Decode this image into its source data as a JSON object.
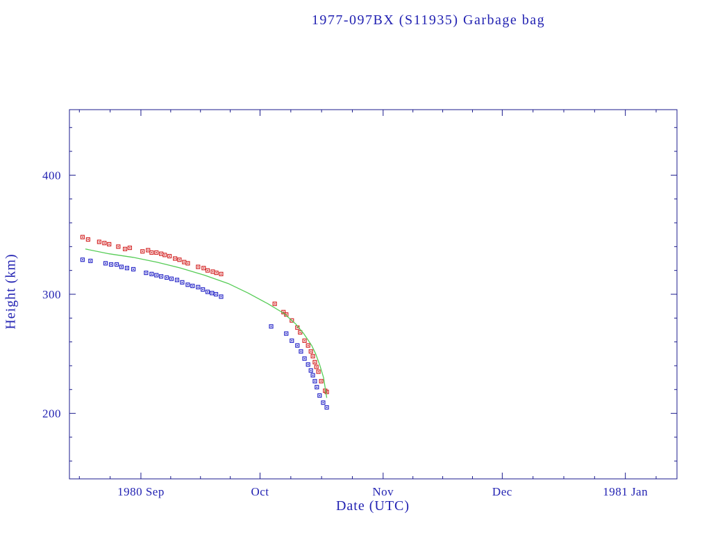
{
  "chart_data": {
    "type": "scatter",
    "title": "1977-097BX (S11935) Garbage bag",
    "xlabel": "Date (UTC)",
    "ylabel": "Height (km)",
    "grid": false,
    "legend": null,
    "colors": {
      "frame": "#1a1a8c",
      "text": "#2222b2",
      "red_points": "#d42a2a",
      "blue_points": "#2a2ac8",
      "green_line": "#55cc55"
    },
    "x_axis": {
      "unit": "days since 1980-08-14",
      "lim": [
        0,
        153
      ],
      "ticks": [
        {
          "d": 18,
          "label": "1980 Sep"
        },
        {
          "d": 48,
          "label": "Oct"
        },
        {
          "d": 79,
          "label": "Nov"
        },
        {
          "d": 109,
          "label": "Dec"
        },
        {
          "d": 140,
          "label": "1981 Jan"
        }
      ],
      "month_boundaries": [
        -13,
        18,
        48,
        79,
        109,
        140,
        171
      ]
    },
    "y_axis": {
      "lim": [
        145,
        455
      ],
      "ticks": [
        {
          "v": 200,
          "label": "200"
        },
        {
          "v": 300,
          "label": "300"
        },
        {
          "v": 400,
          "label": "400"
        }
      ],
      "minor_step": 20
    },
    "series": [
      {
        "name": "red-points",
        "marker": "square",
        "color": "#d42a2a",
        "points": [
          [
            3.3,
            348
          ],
          [
            4.7,
            346
          ],
          [
            7.5,
            344
          ],
          [
            8.8,
            343
          ],
          [
            10.0,
            342
          ],
          [
            12.3,
            340
          ],
          [
            14.0,
            338
          ],
          [
            15.2,
            339
          ],
          [
            18.4,
            336
          ],
          [
            19.8,
            337
          ],
          [
            20.7,
            335
          ],
          [
            21.9,
            335
          ],
          [
            23.1,
            334
          ],
          [
            24.0,
            333
          ],
          [
            25.2,
            332
          ],
          [
            26.6,
            330
          ],
          [
            27.7,
            329
          ],
          [
            28.9,
            327
          ],
          [
            29.8,
            326
          ],
          [
            32.4,
            323
          ],
          [
            33.8,
            322
          ],
          [
            34.8,
            320
          ],
          [
            36.1,
            319
          ],
          [
            37.0,
            318
          ],
          [
            38.2,
            317
          ],
          [
            51.7,
            292
          ],
          [
            53.9,
            285
          ],
          [
            54.6,
            283
          ],
          [
            56.0,
            278
          ],
          [
            57.4,
            272
          ],
          [
            58.1,
            268
          ],
          [
            59.2,
            261
          ],
          [
            60.1,
            257
          ],
          [
            60.8,
            252
          ],
          [
            61.3,
            248
          ],
          [
            61.8,
            243
          ],
          [
            62.2,
            239
          ],
          [
            62.7,
            235
          ],
          [
            63.4,
            227
          ],
          [
            64.4,
            219
          ],
          [
            64.8,
            218
          ]
        ]
      },
      {
        "name": "blue-points",
        "marker": "square",
        "color": "#2a2ac8",
        "points": [
          [
            3.3,
            329
          ],
          [
            5.3,
            328
          ],
          [
            9.1,
            326
          ],
          [
            10.5,
            325
          ],
          [
            11.9,
            325
          ],
          [
            13.1,
            323
          ],
          [
            14.5,
            322
          ],
          [
            16.1,
            321
          ],
          [
            19.3,
            318
          ],
          [
            20.7,
            317
          ],
          [
            21.9,
            316
          ],
          [
            23.1,
            315
          ],
          [
            24.5,
            314
          ],
          [
            25.7,
            313
          ],
          [
            27.1,
            312
          ],
          [
            28.4,
            310
          ],
          [
            29.8,
            308
          ],
          [
            31.0,
            307
          ],
          [
            32.4,
            306
          ],
          [
            33.6,
            304
          ],
          [
            34.8,
            302
          ],
          [
            35.9,
            301
          ],
          [
            36.9,
            300
          ],
          [
            38.2,
            298
          ],
          [
            50.8,
            273
          ],
          [
            54.6,
            267
          ],
          [
            56.0,
            261
          ],
          [
            57.4,
            257
          ],
          [
            58.3,
            252
          ],
          [
            59.2,
            246
          ],
          [
            60.1,
            241
          ],
          [
            60.8,
            236
          ],
          [
            61.3,
            232
          ],
          [
            61.8,
            227
          ],
          [
            62.3,
            222
          ],
          [
            63.0,
            215
          ],
          [
            63.9,
            209
          ],
          [
            64.8,
            205
          ]
        ]
      },
      {
        "name": "green-curve",
        "type": "line",
        "color": "#55cc55",
        "points": [
          [
            4,
            338
          ],
          [
            10,
            334
          ],
          [
            16,
            331
          ],
          [
            22,
            327
          ],
          [
            28,
            322
          ],
          [
            34,
            316
          ],
          [
            40,
            309
          ],
          [
            45,
            301
          ],
          [
            50,
            292
          ],
          [
            54,
            284
          ],
          [
            57,
            275
          ],
          [
            59,
            267
          ],
          [
            61,
            257
          ],
          [
            62,
            250
          ],
          [
            63,
            241
          ],
          [
            64,
            230
          ],
          [
            64.8,
            213
          ]
        ]
      }
    ]
  }
}
